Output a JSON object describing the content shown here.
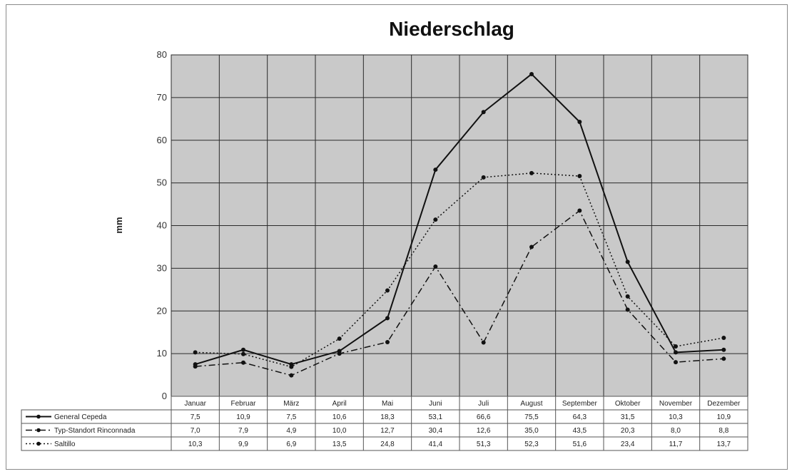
{
  "chart_data": {
    "type": "line",
    "title": "Niederschlag",
    "ylabel": "mm",
    "xlabel": "",
    "ylim": [
      0,
      80
    ],
    "y_ticks": [
      0,
      10,
      20,
      30,
      40,
      50,
      60,
      70,
      80
    ],
    "grid": true,
    "categories": [
      "Januar",
      "Februar",
      "März",
      "April",
      "Mai",
      "Juni",
      "Juli",
      "August",
      "September",
      "Oktober",
      "November",
      "Dezember"
    ],
    "series": [
      {
        "name": "General Cepeda",
        "style": "solid",
        "values": [
          7.5,
          10.9,
          7.5,
          10.6,
          18.3,
          53.1,
          66.6,
          75.5,
          64.3,
          31.5,
          10.3,
          10.9
        ],
        "labels": [
          "7,5",
          "10,9",
          "7,5",
          "10,6",
          "18,3",
          "53,1",
          "66,6",
          "75,5",
          "64,3",
          "31,5",
          "10,3",
          "10,9"
        ]
      },
      {
        "name": "Typ-Standort Rinconnada",
        "style": "dashdot",
        "values": [
          7.0,
          7.9,
          4.9,
          10.0,
          12.7,
          30.4,
          12.6,
          35.0,
          43.5,
          20.3,
          8.0,
          8.8
        ],
        "labels": [
          "7,0",
          "7,9",
          "4,9",
          "10,0",
          "12,7",
          "30,4",
          "12,6",
          "35,0",
          "43,5",
          "20,3",
          "8,0",
          "8,8"
        ]
      },
      {
        "name": "Saltillo",
        "style": "dotted",
        "values": [
          10.3,
          9.9,
          6.9,
          13.5,
          24.8,
          41.4,
          51.3,
          52.3,
          51.6,
          23.4,
          11.7,
          13.7
        ],
        "labels": [
          "10,3",
          "9,9",
          "6,9",
          "13,5",
          "24,8",
          "41,4",
          "51,3",
          "52,3",
          "51,6",
          "23,4",
          "11,7",
          "13,7"
        ]
      }
    ],
    "data_table": true
  }
}
